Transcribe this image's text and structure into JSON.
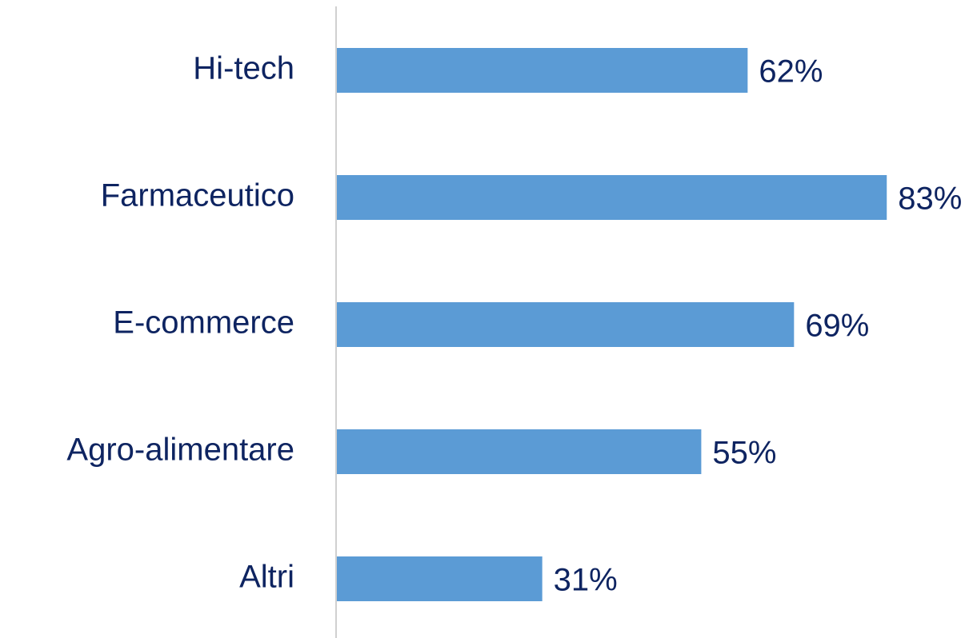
{
  "chart_data": {
    "type": "bar",
    "orientation": "horizontal",
    "categories": [
      "Hi-tech",
      "Farmaceutico",
      "E-commerce",
      "Agro-alimentare",
      "Altri"
    ],
    "values": [
      62,
      83,
      69,
      55,
      31
    ],
    "value_labels": [
      "62%",
      "83%",
      "69%",
      "55%",
      "31%"
    ],
    "color": "#5b9bd5",
    "grid": false
  }
}
